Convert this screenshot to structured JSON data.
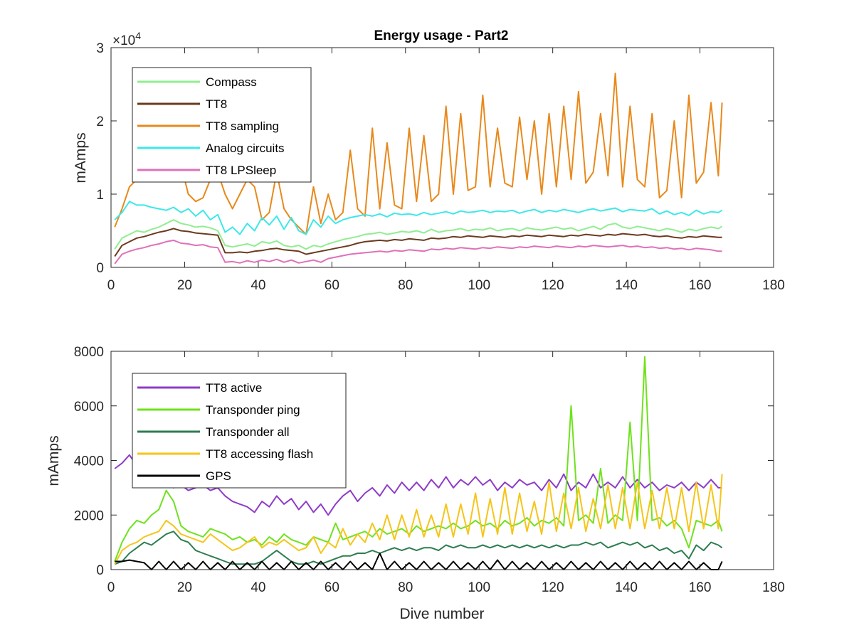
{
  "chart_data": [
    {
      "type": "line",
      "title": "Energy usage - Part2",
      "xlabel": "",
      "ylabel": "mAmps",
      "y_exponent_label": "×10",
      "y_exponent_power": "4",
      "xlim": [
        0,
        180
      ],
      "ylim": [
        0,
        30000
      ],
      "xticks": [
        0,
        20,
        40,
        60,
        80,
        100,
        120,
        140,
        160,
        180
      ],
      "xtick_labels": [
        "0",
        "20",
        "40",
        "60",
        "80",
        "100",
        "120",
        "140",
        "160",
        "180"
      ],
      "yticks": [
        0,
        10000,
        20000,
        30000
      ],
      "ytick_labels": [
        "0",
        "1",
        "2",
        "3"
      ],
      "grid": false,
      "legend_position": "top-left",
      "x": [
        1,
        3,
        5,
        7,
        9,
        11,
        13,
        15,
        17,
        19,
        21,
        23,
        25,
        27,
        29,
        31,
        33,
        35,
        37,
        39,
        41,
        43,
        45,
        47,
        49,
        51,
        53,
        55,
        57,
        59,
        61,
        63,
        65,
        67,
        69,
        71,
        73,
        75,
        77,
        79,
        81,
        83,
        85,
        87,
        89,
        91,
        93,
        95,
        97,
        99,
        101,
        103,
        105,
        107,
        109,
        111,
        113,
        115,
        117,
        119,
        121,
        123,
        125,
        127,
        129,
        131,
        133,
        135,
        137,
        139,
        141,
        143,
        145,
        147,
        149,
        151,
        153,
        155,
        157,
        159,
        161,
        163,
        165,
        166
      ],
      "series": [
        {
          "name": "Compass",
          "color": "#90EE90",
          "values": [
            2500,
            4000,
            4500,
            5000,
            4800,
            5200,
            5500,
            6000,
            6500,
            6000,
            5800,
            5500,
            5600,
            5400,
            5000,
            3000,
            2800,
            3000,
            3200,
            2900,
            3500,
            3300,
            3600,
            3000,
            2800,
            3000,
            2500,
            3000,
            2800,
            3200,
            3500,
            3800,
            4000,
            4200,
            4500,
            4600,
            4800,
            4500,
            4700,
            4900,
            4800,
            5000,
            4700,
            5200,
            4800,
            5000,
            5100,
            5300,
            5000,
            5200,
            5100,
            5400,
            5000,
            5200,
            5300,
            5000,
            5400,
            5200,
            5100,
            5300,
            5500,
            5200,
            5400,
            5000,
            5300,
            5600,
            5200,
            5800,
            6000,
            5500,
            5300,
            5600,
            5400,
            5200,
            5000,
            5300,
            5100,
            4800,
            5200,
            5000,
            5300,
            5500,
            5300,
            5600
          ]
        },
        {
          "name": "TT8",
          "color": "#6B3A1E",
          "values": [
            1500,
            3000,
            3500,
            4000,
            4200,
            4500,
            4800,
            5000,
            5300,
            5000,
            4900,
            4700,
            4600,
            4500,
            4400,
            2000,
            2000,
            2100,
            2000,
            2200,
            2300,
            2500,
            2600,
            2400,
            2300,
            2200,
            1800,
            2000,
            2200,
            2400,
            2600,
            2800,
            3000,
            3300,
            3500,
            3600,
            3700,
            3600,
            3800,
            3700,
            3900,
            3800,
            3700,
            4000,
            3900,
            4000,
            4200,
            4100,
            4300,
            4200,
            4100,
            4300,
            4200,
            4100,
            4300,
            4200,
            4400,
            4300,
            4200,
            4400,
            4300,
            4200,
            4400,
            4300,
            4500,
            4400,
            4300,
            4500,
            4400,
            4600,
            4500,
            4400,
            4500,
            4300,
            4200,
            4300,
            4100,
            4000,
            4200,
            4100,
            4300,
            4200,
            4100,
            4100
          ]
        },
        {
          "name": "TT8 sampling",
          "color": "#E8891C",
          "values": [
            5500,
            8000,
            11000,
            12000,
            14000,
            14500,
            15000,
            22000,
            18000,
            14000,
            10000,
            9000,
            9500,
            12000,
            13000,
            10000,
            8000,
            10000,
            12000,
            11000,
            6500,
            7500,
            13000,
            8000,
            6500,
            5500,
            4500,
            11000,
            6000,
            10000,
            6500,
            7500,
            16000,
            8000,
            7000,
            19000,
            8000,
            17000,
            8500,
            8000,
            19000,
            9000,
            18000,
            9000,
            10000,
            22000,
            10000,
            21000,
            10500,
            11000,
            23500,
            11000,
            19000,
            11500,
            11000,
            20500,
            12000,
            20000,
            10000,
            21000,
            11000,
            22000,
            12000,
            24000,
            11500,
            13000,
            21000,
            12500,
            26500,
            11000,
            22000,
            12000,
            11000,
            21000,
            9500,
            10500,
            20000,
            9500,
            23500,
            11500,
            13000,
            22500,
            12500,
            22500
          ]
        },
        {
          "name": "Analog circuits",
          "color": "#3DE8E8",
          "values": [
            6500,
            7500,
            9000,
            8500,
            8500,
            8200,
            8000,
            7800,
            8200,
            7500,
            8000,
            7000,
            7800,
            6500,
            7200,
            4800,
            5500,
            4500,
            6000,
            5000,
            6800,
            5800,
            7000,
            5200,
            6800,
            5000,
            4500,
            6500,
            5500,
            7000,
            6000,
            6500,
            6800,
            7000,
            7200,
            7000,
            7300,
            6900,
            7400,
            7200,
            7300,
            7100,
            7500,
            7200,
            7400,
            7600,
            7300,
            7700,
            7500,
            7600,
            7800,
            7500,
            7700,
            7600,
            7800,
            7400,
            7700,
            7900,
            7500,
            7800,
            7600,
            7900,
            7700,
            7500,
            7800,
            8000,
            7700,
            7900,
            8100,
            7600,
            7900,
            7800,
            7700,
            8000,
            7300,
            7700,
            7200,
            7500,
            7100,
            7800,
            7300,
            7600,
            7500,
            7800
          ]
        },
        {
          "name": "TT8 LPSleep",
          "color": "#E070B8",
          "values": [
            500,
            1800,
            2200,
            2500,
            2700,
            3000,
            3200,
            3500,
            3700,
            3300,
            3200,
            3000,
            3100,
            2800,
            2700,
            700,
            800,
            600,
            900,
            700,
            1000,
            800,
            1100,
            700,
            1000,
            600,
            800,
            1000,
            700,
            1200,
            1400,
            1600,
            1800,
            1900,
            2000,
            2100,
            2200,
            2100,
            2300,
            2200,
            2400,
            2300,
            2200,
            2500,
            2400,
            2600,
            2500,
            2700,
            2600,
            2500,
            2700,
            2600,
            2800,
            2700,
            2600,
            2800,
            2700,
            2900,
            2800,
            2700,
            2900,
            2800,
            2700,
            2900,
            2800,
            3000,
            2900,
            2800,
            2900,
            3000,
            2800,
            2900,
            2700,
            2800,
            2600,
            2700,
            2500,
            2600,
            2400,
            2600,
            2500,
            2400,
            2200,
            2200
          ]
        }
      ]
    },
    {
      "type": "line",
      "title": "",
      "xlabel": "Dive number",
      "ylabel": "mAmps",
      "xlim": [
        0,
        180
      ],
      "ylim": [
        0,
        8000
      ],
      "xticks": [
        0,
        20,
        40,
        60,
        80,
        100,
        120,
        140,
        160,
        180
      ],
      "xtick_labels": [
        "0",
        "20",
        "40",
        "60",
        "80",
        "100",
        "120",
        "140",
        "160",
        "180"
      ],
      "yticks": [
        0,
        2000,
        4000,
        6000,
        8000
      ],
      "ytick_labels": [
        "0",
        "2000",
        "4000",
        "6000",
        "8000"
      ],
      "grid": false,
      "legend_position": "top-left",
      "x": [
        1,
        3,
        5,
        7,
        9,
        11,
        13,
        15,
        17,
        19,
        21,
        23,
        25,
        27,
        29,
        31,
        33,
        35,
        37,
        39,
        41,
        43,
        45,
        47,
        49,
        51,
        53,
        55,
        57,
        59,
        61,
        63,
        65,
        67,
        69,
        71,
        73,
        75,
        77,
        79,
        81,
        83,
        85,
        87,
        89,
        91,
        93,
        95,
        97,
        99,
        101,
        103,
        105,
        107,
        109,
        111,
        113,
        115,
        117,
        119,
        121,
        123,
        125,
        127,
        129,
        131,
        133,
        135,
        137,
        139,
        141,
        143,
        145,
        147,
        149,
        151,
        153,
        155,
        157,
        159,
        161,
        163,
        165,
        166
      ],
      "series": [
        {
          "name": "TT8 active",
          "color": "#8E3CC8",
          "values": [
            3700,
            3900,
            4200,
            3800,
            3600,
            3500,
            3700,
            3100,
            3000,
            3100,
            2900,
            3000,
            3100,
            2900,
            3000,
            2700,
            2500,
            2400,
            2300,
            2100,
            2500,
            2300,
            2700,
            2400,
            2600,
            2200,
            2500,
            2100,
            2400,
            2000,
            2400,
            2700,
            2900,
            2500,
            2800,
            3000,
            2700,
            3100,
            2800,
            3200,
            2900,
            3200,
            2900,
            3300,
            3000,
            3400,
            3000,
            3300,
            3100,
            3400,
            3100,
            3300,
            2900,
            3200,
            3000,
            3300,
            3100,
            3200,
            2900,
            3300,
            3000,
            3500,
            2900,
            3200,
            3000,
            3500,
            3000,
            3200,
            3000,
            3400,
            3000,
            3300,
            3000,
            3200,
            2900,
            3100,
            3000,
            3200,
            2900,
            3200,
            3000,
            3300,
            3000,
            3000
          ]
        },
        {
          "name": "Transponder ping",
          "color": "#6FE21E",
          "values": [
            300,
            1000,
            1500,
            1800,
            1700,
            2000,
            2200,
            2900,
            2500,
            1600,
            1400,
            1300,
            1200,
            1500,
            1400,
            1300,
            1100,
            1200,
            1000,
            1100,
            900,
            1200,
            1000,
            1300,
            1100,
            1000,
            900,
            1200,
            1100,
            1000,
            1700,
            1100,
            1200,
            1300,
            1400,
            1200,
            1500,
            1300,
            1400,
            1500,
            1300,
            1600,
            1400,
            1500,
            1600,
            1500,
            1700,
            1500,
            1600,
            1800,
            1600,
            1700,
            1500,
            1800,
            1600,
            1700,
            1900,
            1600,
            1800,
            1700,
            1900,
            1600,
            6000,
            1800,
            2000,
            1700,
            3700,
            1700,
            2000,
            1800,
            5400,
            1800,
            7800,
            1800,
            1900,
            1600,
            1800,
            1500,
            800,
            1800,
            1700,
            1600,
            1800,
            1400
          ]
        },
        {
          "name": "Transponder all",
          "color": "#2E7D50",
          "values": [
            200,
            300,
            600,
            800,
            1000,
            900,
            1100,
            1300,
            1400,
            1100,
            1000,
            700,
            600,
            500,
            400,
            300,
            200,
            200,
            200,
            200,
            300,
            500,
            700,
            500,
            300,
            200,
            200,
            300,
            200,
            300,
            400,
            500,
            500,
            600,
            600,
            700,
            600,
            700,
            800,
            700,
            800,
            700,
            800,
            800,
            700,
            900,
            800,
            900,
            800,
            800,
            900,
            800,
            900,
            800,
            900,
            800,
            900,
            800,
            900,
            800,
            900,
            800,
            900,
            900,
            1000,
            900,
            1000,
            800,
            900,
            1000,
            900,
            1000,
            800,
            900,
            700,
            800,
            600,
            700,
            400,
            900,
            700,
            1000,
            900,
            800
          ]
        },
        {
          "name": "TT8 accessing flash",
          "color": "#F5C518",
          "values": [
            200,
            700,
            900,
            1000,
            1200,
            1300,
            1400,
            1800,
            1600,
            1300,
            1200,
            1100,
            1000,
            1300,
            1100,
            900,
            700,
            800,
            1000,
            1200,
            800,
            1000,
            900,
            1100,
            900,
            700,
            800,
            1200,
            600,
            1000,
            800,
            1500,
            900,
            1300,
            1000,
            1700,
            1100,
            2000,
            1100,
            2000,
            1200,
            2200,
            1200,
            2000,
            1200,
            2400,
            1200,
            2400,
            1300,
            2800,
            1200,
            2600,
            1300,
            3000,
            1300,
            2800,
            1400,
            2500,
            1300,
            3200,
            1400,
            2800,
            1500,
            3000,
            1400,
            2600,
            1500,
            3100,
            1500,
            3000,
            1500,
            3200,
            1500,
            2900,
            1500,
            3000,
            1500,
            3000,
            1400,
            3200,
            1500,
            3100,
            1500,
            3500
          ]
        },
        {
          "name": "GPS",
          "color": "#000000",
          "values": [
            300,
            300,
            350,
            300,
            250,
            0,
            300,
            0,
            300,
            0,
            250,
            0,
            300,
            0,
            250,
            0,
            300,
            0,
            250,
            0,
            300,
            0,
            250,
            0,
            300,
            0,
            250,
            0,
            300,
            0,
            250,
            0,
            300,
            0,
            250,
            0,
            600,
            0,
            300,
            0,
            250,
            0,
            300,
            0,
            250,
            0,
            300,
            0,
            250,
            0,
            300,
            0,
            350,
            0,
            300,
            0,
            250,
            0,
            300,
            0,
            250,
            0,
            300,
            0,
            250,
            0,
            300,
            0,
            250,
            0,
            300,
            0,
            250,
            0,
            300,
            0,
            250,
            0,
            300,
            0,
            250,
            0,
            0,
            300
          ]
        }
      ]
    }
  ]
}
